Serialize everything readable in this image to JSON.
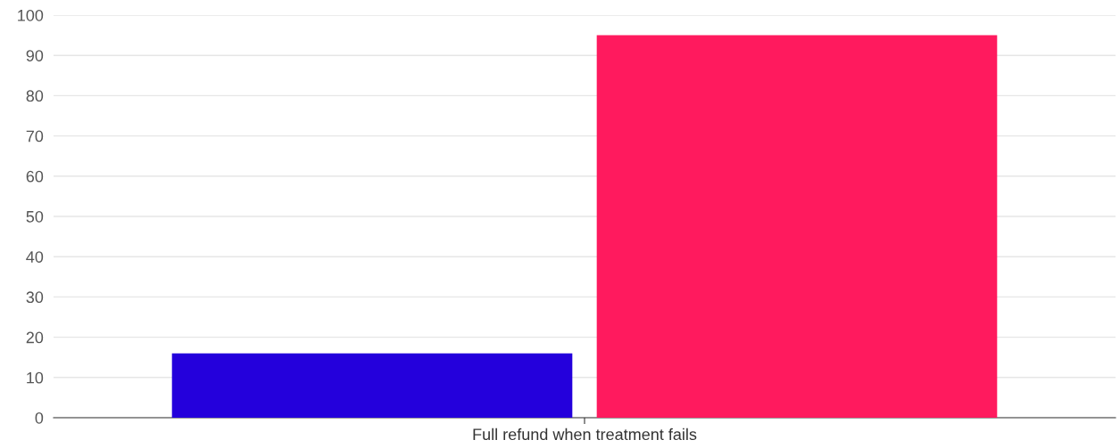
{
  "chart_data": {
    "type": "bar",
    "categories": [
      "Full refund when treatment fails"
    ],
    "series": [
      {
        "color": "#2400dc",
        "values": [
          16
        ]
      },
      {
        "color": "#ff1a5e",
        "values": [
          95
        ]
      }
    ],
    "ylim": [
      0,
      100
    ],
    "yticks": [
      0,
      10,
      20,
      30,
      40,
      50,
      60,
      70,
      80,
      90,
      100
    ],
    "grid": "y"
  }
}
